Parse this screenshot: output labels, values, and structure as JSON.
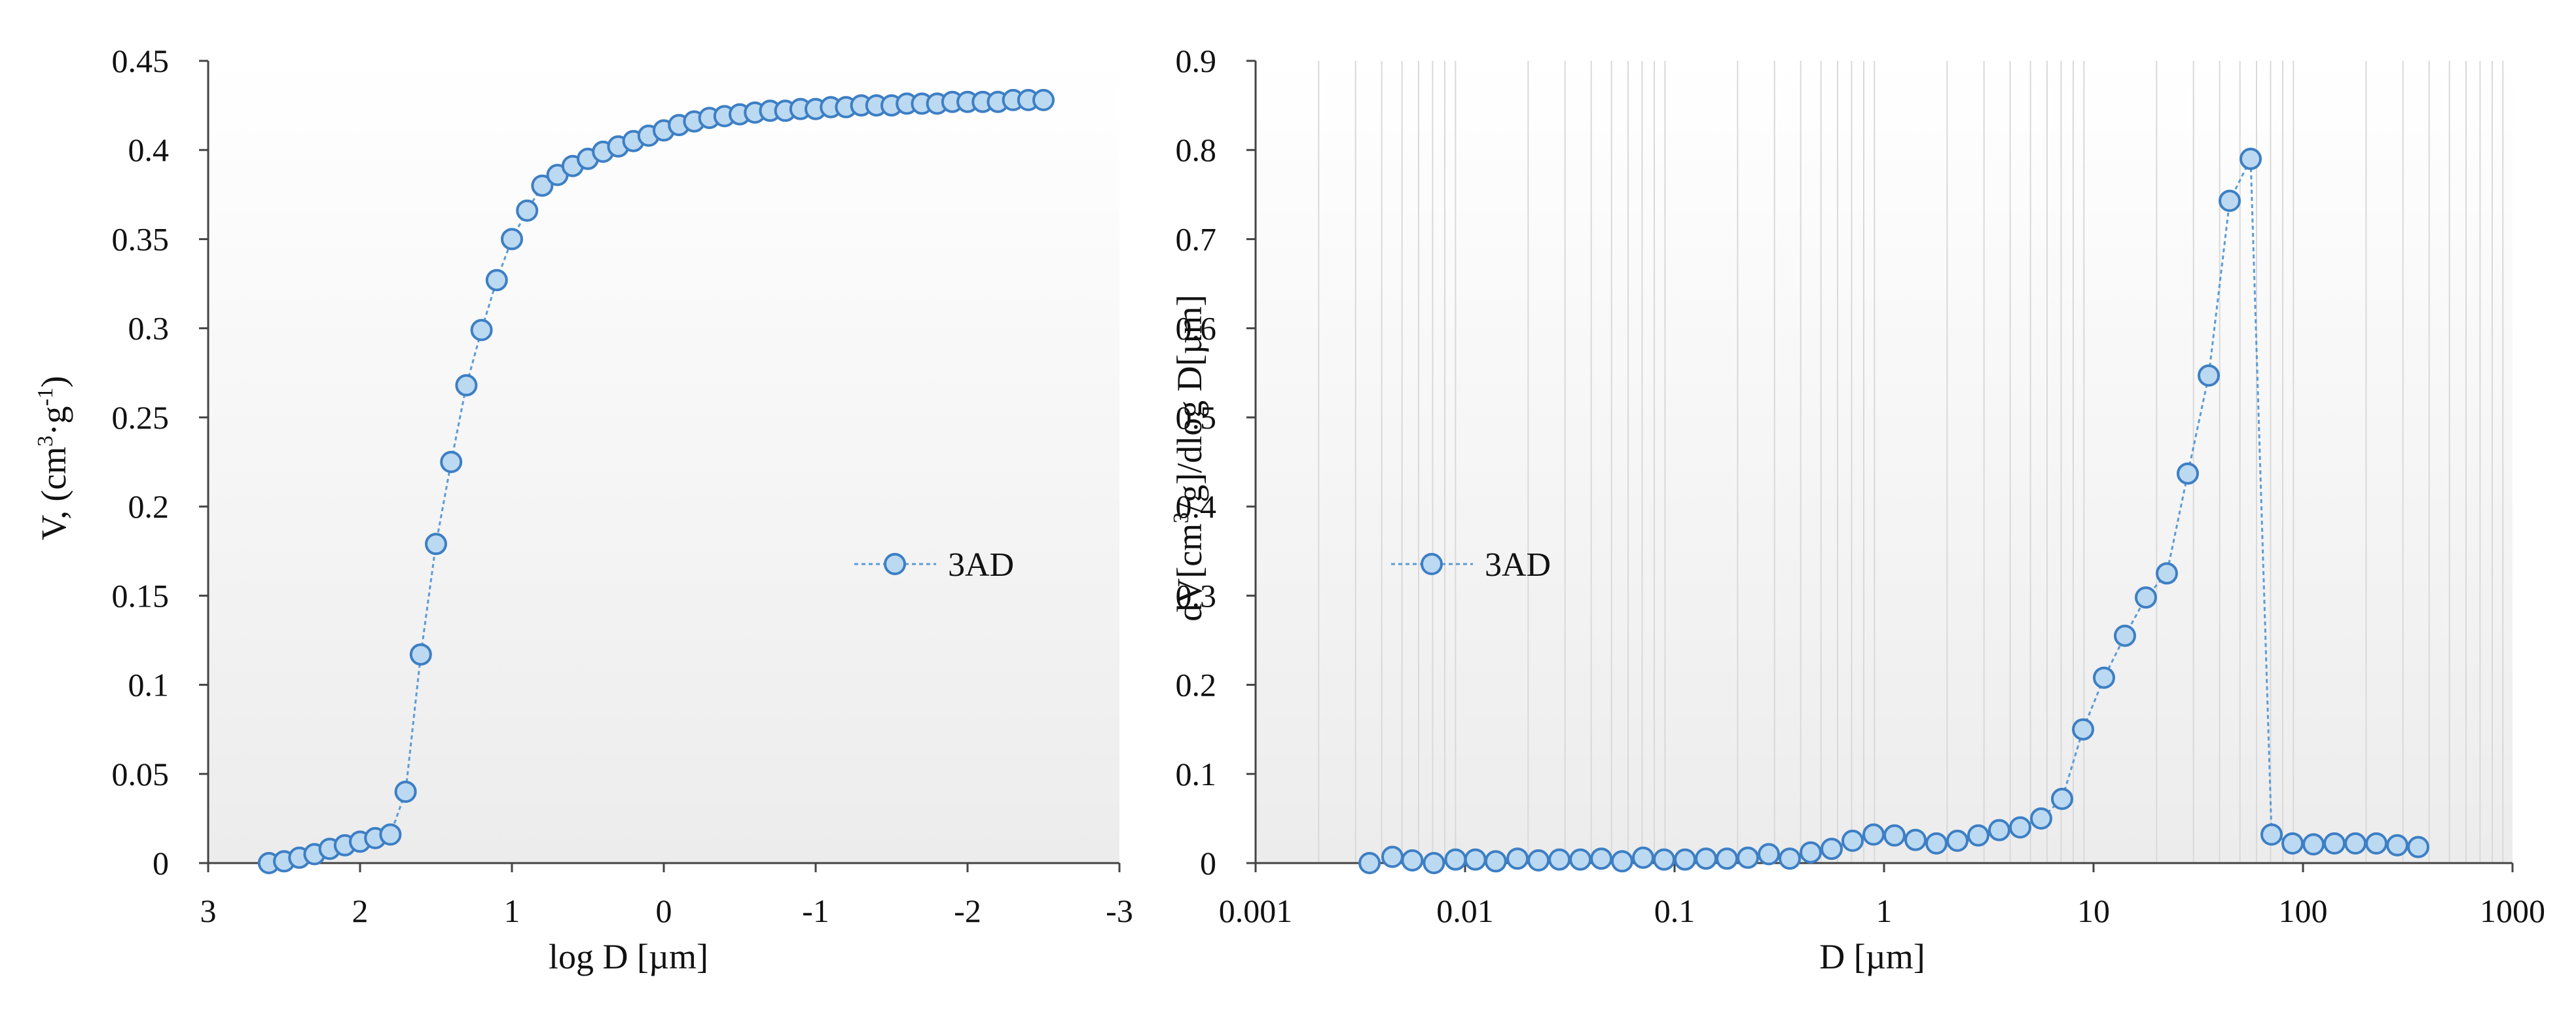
{
  "colors": {
    "marker_fill": "#bcd9f2",
    "marker_stroke": "#3d7fc4",
    "line": "#5b9bd5",
    "axis": "#444444",
    "grid": "#d9d9d9",
    "plot_bg_top": "#ffffff",
    "plot_bg_bottom": "#ececec"
  },
  "chart_data": [
    {
      "type": "line",
      "title": "",
      "xlabel": "log D [µm]",
      "ylabel_main": "V, (cm",
      "ylabel_sup1": "3",
      "ylabel_mid": "·g",
      "ylabel_sup2": "-1",
      "ylabel_end": ")",
      "ylabel": "V, (cm3·g-1)",
      "xlim": [
        3,
        -3
      ],
      "ylim": [
        0,
        0.45
      ],
      "x_reversed": true,
      "grid": false,
      "xticks": [
        3,
        2,
        1,
        0,
        -1,
        -2,
        -3
      ],
      "xtick_labels": [
        "3",
        "2",
        "1",
        "0",
        "-1",
        "-2",
        "-3"
      ],
      "yticks": [
        0,
        0.05,
        0.1,
        0.15,
        0.2,
        0.25,
        0.3,
        0.35,
        0.4,
        0.45
      ],
      "ytick_labels": [
        "0",
        "0.05",
        "0.1",
        "0.15",
        "0.2",
        "0.25",
        "0.3",
        "0.35",
        "0.4",
        "0.45"
      ],
      "legend_position": "right-center",
      "series": [
        {
          "name": "3AD",
          "x": [
            2.6,
            2.5,
            2.4,
            2.3,
            2.2,
            2.1,
            2.0,
            1.9,
            1.8,
            1.7,
            1.6,
            1.5,
            1.4,
            1.3,
            1.2,
            1.1,
            1.0,
            0.9,
            0.8,
            0.7,
            0.6,
            0.5,
            0.4,
            0.3,
            0.2,
            0.1,
            0.0,
            -0.1,
            -0.2,
            -0.3,
            -0.4,
            -0.5,
            -0.6,
            -0.7,
            -0.8,
            -0.9,
            -1.0,
            -1.1,
            -1.2,
            -1.3,
            -1.4,
            -1.5,
            -1.6,
            -1.7,
            -1.8,
            -1.9,
            -2.0,
            -2.1,
            -2.2,
            -2.3,
            -2.4,
            -2.5
          ],
          "values": [
            0.0,
            0.001,
            0.003,
            0.005,
            0.008,
            0.01,
            0.012,
            0.014,
            0.016,
            0.04,
            0.117,
            0.179,
            0.225,
            0.268,
            0.299,
            0.327,
            0.35,
            0.366,
            0.38,
            0.386,
            0.391,
            0.395,
            0.399,
            0.402,
            0.405,
            0.408,
            0.411,
            0.414,
            0.416,
            0.418,
            0.419,
            0.42,
            0.421,
            0.422,
            0.422,
            0.423,
            0.423,
            0.424,
            0.424,
            0.425,
            0.425,
            0.425,
            0.426,
            0.426,
            0.426,
            0.427,
            0.427,
            0.427,
            0.427,
            0.428,
            0.428,
            0.428
          ]
        }
      ]
    },
    {
      "type": "line",
      "title": "",
      "xlabel": "D [µm]",
      "ylabel_main": "dV[cm",
      "ylabel_sup1": "3",
      "ylabel_end": "/g]/dlog D[µm]",
      "ylabel": "dV[cm3/g]/dlog D[µm]",
      "x_scale": "log",
      "xlim": [
        0.001,
        1000
      ],
      "ylim": [
        0,
        0.9
      ],
      "grid": "vertical minor",
      "xticks": [
        0.001,
        0.01,
        0.1,
        1,
        10,
        100,
        1000
      ],
      "xtick_labels": [
        "0.001",
        "0.01",
        "0.1",
        "1",
        "10",
        "100",
        "1000"
      ],
      "yticks": [
        0,
        0.1,
        0.2,
        0.3,
        0.4,
        0.5,
        0.6,
        0.7,
        0.8,
        0.9
      ],
      "ytick_labels": [
        "0",
        "0.1",
        "0.2",
        "0.3",
        "0.4",
        "0.5",
        "0.6",
        "0.7",
        "0.8",
        "0.9"
      ],
      "legend_position": "left-center",
      "series": [
        {
          "name": "3AD",
          "x": [
            0.0035,
            0.0045,
            0.0056,
            0.0071,
            0.009,
            0.0112,
            0.014,
            0.0178,
            0.0224,
            0.0282,
            0.0355,
            0.0447,
            0.0562,
            0.0708,
            0.0891,
            0.1122,
            0.1413,
            0.1778,
            0.2239,
            0.2818,
            0.3548,
            0.4467,
            0.5623,
            0.7079,
            0.8913,
            1.122,
            1.413,
            1.778,
            2.239,
            2.818,
            3.548,
            4.467,
            5.623,
            7.079,
            8.913,
            11.22,
            14.13,
            17.78,
            22.39,
            28.18,
            35.48,
            44.67,
            56.23,
            70.79,
            89.13,
            112.2,
            141.3,
            177.8,
            223.9,
            281.8,
            354.8
          ],
          "values": [
            0.0,
            0.007,
            0.003,
            0.0,
            0.004,
            0.004,
            0.002,
            0.005,
            0.003,
            0.004,
            0.004,
            0.005,
            0.002,
            0.006,
            0.004,
            0.004,
            0.005,
            0.005,
            0.006,
            0.01,
            0.005,
            0.012,
            0.016,
            0.025,
            0.032,
            0.031,
            0.026,
            0.022,
            0.025,
            0.031,
            0.037,
            0.04,
            0.05,
            0.072,
            0.15,
            0.208,
            0.255,
            0.298,
            0.325,
            0.437,
            0.547,
            0.743,
            0.79,
            0.032,
            0.022,
            0.021,
            0.022,
            0.022,
            0.022,
            0.02,
            0.018
          ]
        }
      ]
    }
  ]
}
